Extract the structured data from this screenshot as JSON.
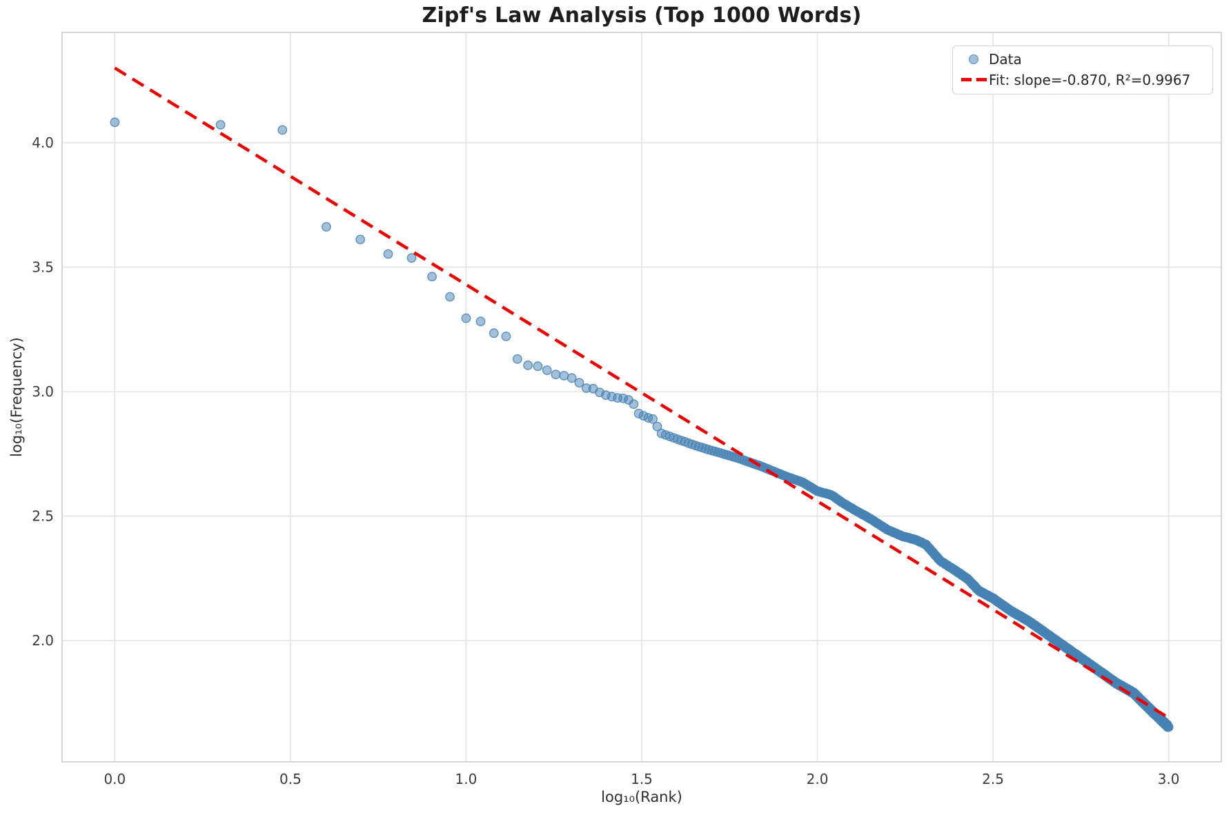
{
  "chart_data": {
    "type": "scatter",
    "title": "Zipf's Law Analysis (Top 1000 Words)",
    "xlabel": "log₁₀(Rank)",
    "ylabel": "log₁₀(Frequency)",
    "xlim": [
      -0.15,
      3.15
    ],
    "ylim": [
      1.513,
      4.443
    ],
    "xticks": [
      0.0,
      0.5,
      1.0,
      1.5,
      2.0,
      2.5,
      3.0
    ],
    "yticks": [
      2.0,
      2.5,
      3.0,
      3.5,
      4.0
    ],
    "grid": true,
    "grid_color": "#e5e5e5",
    "spine_color": "#cfcfcf",
    "tick_label_color": "#3a3a3a",
    "legend_position": "upper right",
    "n_points": 1000,
    "x_definition": "x = log10(rank), rank = 1..1000",
    "series": [
      {
        "name": "Data",
        "type": "scatter",
        "marker_color": "#4682B4",
        "marker_alpha": 0.5,
        "head_points": [
          [
            0.0,
            4.082
          ],
          [
            0.301,
            4.072
          ],
          [
            0.4771,
            4.051
          ],
          [
            0.6021,
            3.662
          ],
          [
            0.699,
            3.611
          ],
          [
            0.7782,
            3.553
          ],
          [
            0.8451,
            3.537
          ],
          [
            0.9031,
            3.462
          ],
          [
            0.9542,
            3.381
          ],
          [
            1.0,
            3.295
          ],
          [
            1.0414,
            3.282
          ],
          [
            1.0792,
            3.235
          ],
          [
            1.1139,
            3.222
          ],
          [
            1.1461,
            3.131
          ],
          [
            1.1761,
            3.106
          ],
          [
            1.2041,
            3.102
          ],
          [
            1.2304,
            3.086
          ],
          [
            1.2553,
            3.069
          ],
          [
            1.2788,
            3.064
          ],
          [
            1.301,
            3.055
          ],
          [
            1.3222,
            3.036
          ],
          [
            1.3424,
            3.014
          ],
          [
            1.3617,
            3.012
          ],
          [
            1.3802,
            2.997
          ],
          [
            1.3979,
            2.986
          ],
          [
            1.415,
            2.98
          ],
          [
            1.4314,
            2.975
          ],
          [
            1.4472,
            2.973
          ],
          [
            1.4624,
            2.967
          ],
          [
            1.4771,
            2.95
          ],
          [
            1.4914,
            2.912
          ],
          [
            1.5051,
            2.903
          ],
          [
            1.5185,
            2.895
          ],
          [
            1.5315,
            2.89
          ],
          [
            1.5441,
            2.86
          ],
          [
            1.5563,
            2.832
          ]
        ],
        "tail_anchors": [
          [
            1.5563,
            2.832
          ],
          [
            1.6,
            2.81
          ],
          [
            1.66,
            2.78
          ],
          [
            1.72,
            2.755
          ],
          [
            1.78,
            2.73
          ],
          [
            1.84,
            2.7
          ],
          [
            1.91,
            2.66
          ],
          [
            1.96,
            2.635
          ],
          [
            2.0,
            2.6
          ],
          [
            2.04,
            2.585
          ],
          [
            2.07,
            2.555
          ],
          [
            2.1,
            2.53
          ],
          [
            2.15,
            2.49
          ],
          [
            2.2,
            2.445
          ],
          [
            2.24,
            2.42
          ],
          [
            2.28,
            2.405
          ],
          [
            2.31,
            2.385
          ],
          [
            2.35,
            2.32
          ],
          [
            2.4,
            2.275
          ],
          [
            2.43,
            2.245
          ],
          [
            2.46,
            2.2
          ],
          [
            2.5,
            2.17
          ],
          [
            2.55,
            2.12
          ],
          [
            2.6,
            2.08
          ],
          [
            2.65,
            2.03
          ],
          [
            2.7,
            1.98
          ],
          [
            2.75,
            1.93
          ],
          [
            2.8,
            1.88
          ],
          [
            2.85,
            1.83
          ],
          [
            2.9,
            1.79
          ],
          [
            2.95,
            1.72
          ],
          [
            3.0,
            1.653
          ]
        ],
        "tail_rule": "ranks 37-1000: y = log10(round(10^interp(log10(rank)))), frequencies monotone non-increasing"
      },
      {
        "name": "Fit: slope=-0.870, R²=0.9967",
        "type": "line",
        "style": "dashed",
        "color": "#ee0000",
        "slope": -0.87,
        "intercept": 4.3,
        "r_squared": 0.9967,
        "x_range": [
          0.0,
          3.0
        ]
      }
    ]
  }
}
